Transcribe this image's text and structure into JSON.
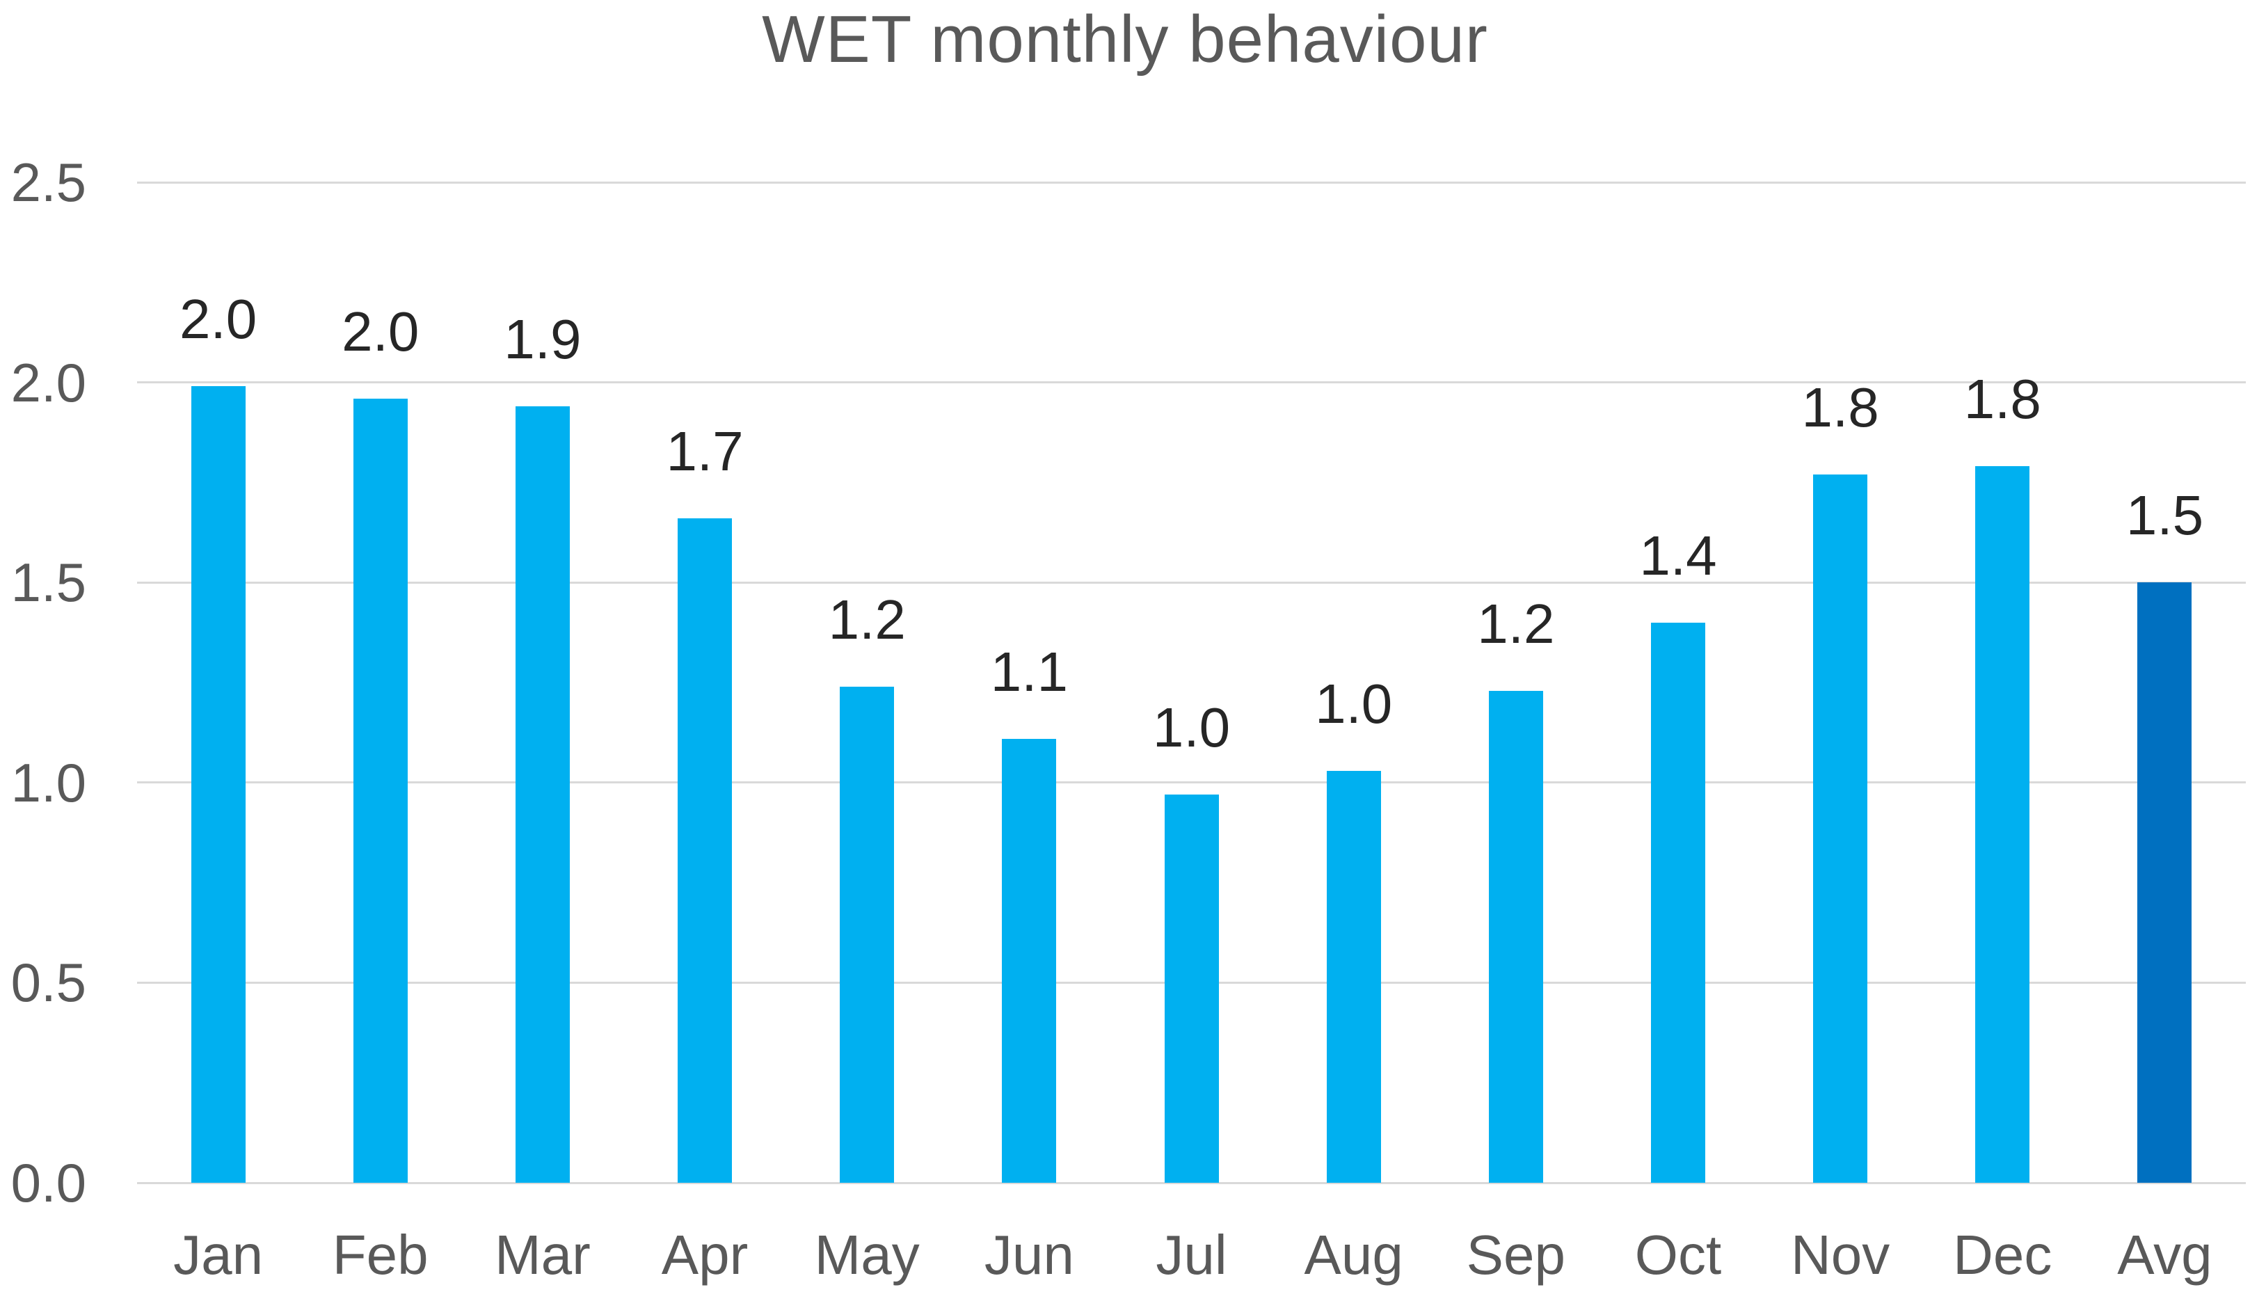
{
  "title": "WET monthly behaviour",
  "colors": {
    "background": "#FFFFFF",
    "bar": "#00B0F0",
    "avg_bar": "#0070C0",
    "gridline": "#D9D9D9",
    "axis_text": "#595959",
    "title_text": "#595959",
    "data_label_text": "#262626"
  },
  "chart_data": {
    "type": "bar",
    "title": "WET monthly behaviour",
    "categories": [
      "Jan",
      "Feb",
      "Mar",
      "Apr",
      "May",
      "Jun",
      "Jul",
      "Aug",
      "Sep",
      "Oct",
      "Nov",
      "Dec",
      "Avg"
    ],
    "values": [
      1.99,
      1.96,
      1.94,
      1.66,
      1.24,
      1.11,
      0.97,
      1.03,
      1.23,
      1.4,
      1.77,
      1.79,
      1.5
    ],
    "data_labels": [
      "2.0",
      "2.0",
      "1.9",
      "1.7",
      "1.2",
      "1.1",
      "1.0",
      "1.0",
      "1.2",
      "1.4",
      "1.8",
      "1.8",
      "1.5"
    ],
    "highlight_category": "Avg",
    "xlabel": "",
    "ylabel": "",
    "ylim": [
      0,
      2.5
    ],
    "ytick_interval": 0.5,
    "yticks": [
      "0.0",
      "0.5",
      "1.0",
      "1.5",
      "2.0",
      "2.5"
    ],
    "grid": true,
    "legend": false,
    "bar_colors_note": "all bars light blue, Avg bar dark blue"
  }
}
